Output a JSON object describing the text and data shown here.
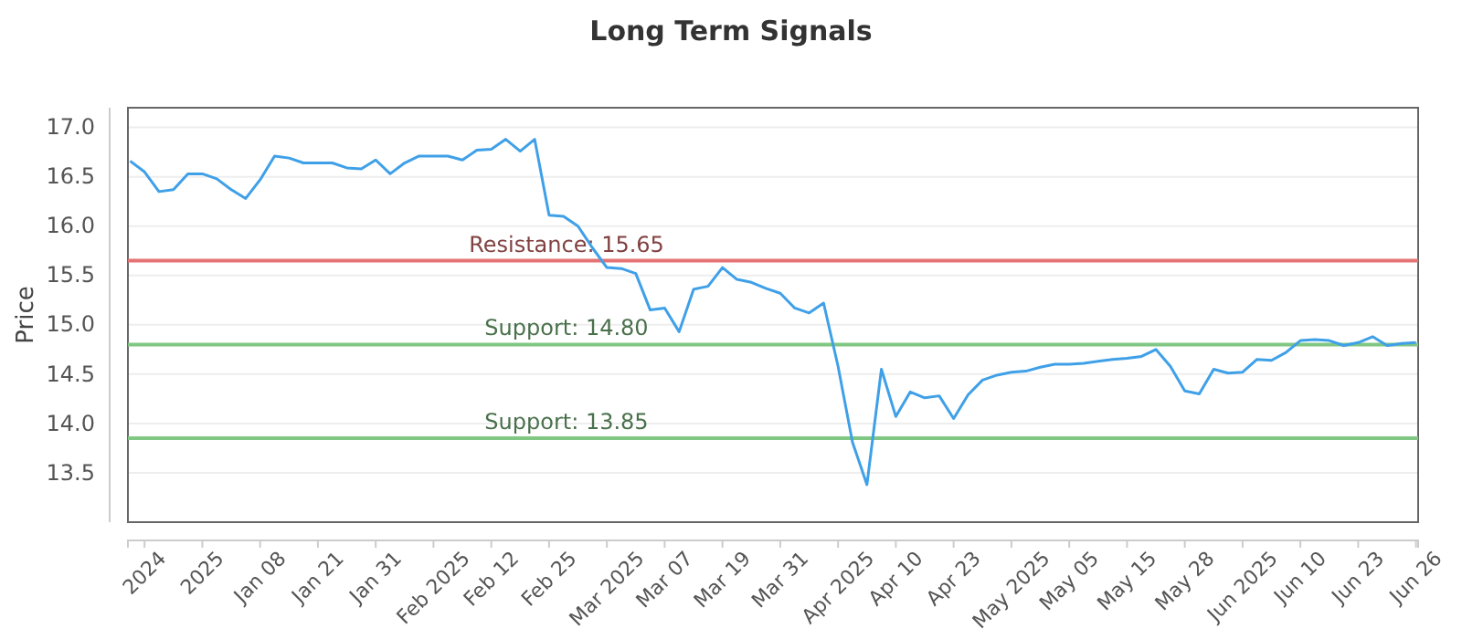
{
  "chart_data": {
    "type": "line",
    "title": "Long Term Signals",
    "ylabel": "Price",
    "categories": [
      null,
      "2024",
      null,
      null,
      null,
      "2025",
      null,
      null,
      null,
      "Jan 08",
      null,
      null,
      null,
      "Jan 21",
      null,
      null,
      null,
      "Jan 31",
      null,
      null,
      null,
      "Feb 2025",
      null,
      null,
      null,
      "Feb 12",
      null,
      null,
      null,
      "Feb 25",
      null,
      null,
      null,
      "Mar 2025",
      null,
      null,
      null,
      "Mar 07",
      null,
      null,
      null,
      "Mar 19",
      null,
      null,
      null,
      "Mar 31",
      null,
      null,
      null,
      "Apr 2025",
      null,
      null,
      null,
      "Apr 10",
      null,
      null,
      null,
      "Apr 23",
      null,
      null,
      null,
      "May 2025",
      null,
      null,
      null,
      "May 05",
      null,
      null,
      null,
      "May 15",
      null,
      null,
      null,
      "May 28",
      null,
      null,
      null,
      "Jun 2025",
      null,
      null,
      null,
      "Jun 10",
      null,
      null,
      null,
      "Jun 23",
      null,
      null,
      null,
      "Jun 26"
    ],
    "series": [
      {
        "color": "#3fa0e8",
        "values": [
          16.66,
          16.55,
          16.35,
          16.37,
          16.53,
          16.53,
          16.48,
          16.37,
          16.28,
          16.47,
          16.71,
          16.69,
          16.64,
          16.64,
          16.64,
          16.59,
          16.58,
          16.67,
          16.53,
          16.64,
          16.71,
          16.71,
          16.71,
          16.67,
          16.77,
          16.78,
          16.88,
          16.76,
          16.88,
          16.11,
          16.1,
          16.0,
          15.78,
          15.58,
          15.57,
          15.52,
          15.15,
          15.17,
          14.93,
          15.36,
          15.39,
          15.58,
          15.46,
          15.43,
          15.37,
          15.32,
          15.17,
          15.12,
          15.22,
          14.58,
          13.81,
          13.38,
          14.55,
          14.07,
          14.32,
          14.26,
          14.28,
          14.05,
          14.29,
          14.44,
          14.49,
          14.52,
          14.53,
          14.57,
          14.6,
          14.6,
          14.61,
          14.63,
          14.65,
          14.66,
          14.68,
          14.75,
          14.58,
          14.33,
          14.3,
          14.55,
          14.51,
          14.52,
          14.65,
          14.64,
          14.72,
          14.84,
          14.85,
          14.84,
          14.79,
          14.82,
          14.88,
          14.79,
          14.81,
          14.82
        ]
      }
    ],
    "ylim": [
      13.0,
      17.2
    ],
    "yticks": [
      13.5,
      {
        "value": 14,
        "label": "14.0"
      },
      14.5,
      {
        "value": 15,
        "label": "15.0"
      },
      15.5,
      {
        "value": 16,
        "label": "16.0"
      },
      16.5,
      {
        "value": 17,
        "label": "17.0"
      }
    ],
    "grid": "y",
    "marker": "none",
    "line_style": "solid",
    "ref_lines": [
      {
        "axis": "y",
        "value": 15.65,
        "label": "Resistance: 15.65",
        "color": "#e57373"
      },
      {
        "axis": "y",
        "value": 14.8,
        "label": "Support: 14.80",
        "color": "#81c784"
      },
      {
        "axis": "y",
        "value": 13.85,
        "label": "Support: 13.85",
        "color": "#81c784"
      }
    ]
  }
}
